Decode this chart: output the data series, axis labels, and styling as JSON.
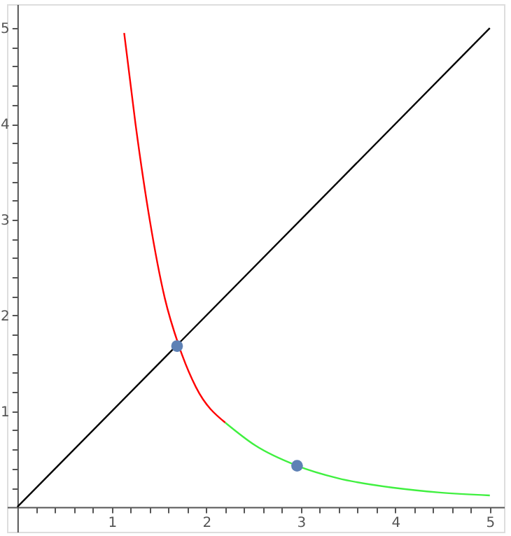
{
  "chart_data": {
    "type": "line",
    "xlim": [
      -0.11,
      5.15
    ],
    "ylim": [
      -0.26,
      5.25
    ],
    "xticks": [
      {
        "value": 0.2,
        "label": null
      },
      {
        "value": 0.4,
        "label": null
      },
      {
        "value": 0.6,
        "label": null
      },
      {
        "value": 0.8,
        "label": null
      },
      1,
      {
        "value": 1.2,
        "label": null
      },
      {
        "value": 1.4,
        "label": null
      },
      {
        "value": 1.6,
        "label": null
      },
      {
        "value": 1.8,
        "label": null
      },
      2,
      {
        "value": 2.2,
        "label": null
      },
      {
        "value": 2.4,
        "label": null
      },
      {
        "value": 2.6,
        "label": null
      },
      {
        "value": 2.8,
        "label": null
      },
      3,
      {
        "value": 3.2,
        "label": null
      },
      {
        "value": 3.4,
        "label": null
      },
      {
        "value": 3.6,
        "label": null
      },
      {
        "value": 3.8,
        "label": null
      },
      4,
      {
        "value": 4.2,
        "label": null
      },
      {
        "value": 4.4,
        "label": null
      },
      {
        "value": 4.6,
        "label": null
      },
      {
        "value": 4.8,
        "label": null
      },
      5
    ],
    "yticks": [
      {
        "value": 0.2,
        "label": null
      },
      {
        "value": 0.4,
        "label": null
      },
      {
        "value": 0.6,
        "label": null
      },
      {
        "value": 0.8,
        "label": null
      },
      1,
      {
        "value": 1.2,
        "label": null
      },
      {
        "value": 1.4,
        "label": null
      },
      {
        "value": 1.6,
        "label": null
      },
      {
        "value": 1.8,
        "label": null
      },
      2,
      {
        "value": 2.2,
        "label": null
      },
      {
        "value": 2.4,
        "label": null
      },
      {
        "value": 2.6,
        "label": null
      },
      {
        "value": 2.8,
        "label": null
      },
      3,
      {
        "value": 3.2,
        "label": null
      },
      {
        "value": 3.4,
        "label": null
      },
      {
        "value": 3.6,
        "label": null
      },
      {
        "value": 3.8,
        "label": null
      },
      4,
      {
        "value": 4.2,
        "label": null
      },
      {
        "value": 4.4,
        "label": null
      },
      {
        "value": 4.6,
        "label": null
      },
      {
        "value": 4.8,
        "label": null
      },
      5
    ],
    "grid": false,
    "line_style": "solid",
    "series": [
      {
        "type": "line",
        "color": "#000000",
        "x": [
          0,
          5
        ],
        "values": [
          0,
          5
        ]
      },
      {
        "type": "line",
        "color": "#ff0000",
        "x": [
          1.13,
          1.25,
          1.4,
          1.56,
          1.71,
          1.89,
          2.2
        ],
        "values": [
          4.95,
          4.0,
          3.0,
          2.18,
          1.68,
          1.25,
          0.88
        ]
      },
      {
        "type": "line",
        "color": "#40f040",
        "x": [
          2.2,
          2.52,
          2.96,
          3.39,
          3.98,
          4.47,
          5.0
        ],
        "values": [
          0.88,
          0.64,
          0.43,
          0.3,
          0.2,
          0.15,
          0.12
        ]
      },
      {
        "type": "scatter",
        "marker": "circle",
        "color": "#5e81b5",
        "x": [
          1.69,
          2.96
        ],
        "values": [
          1.68,
          0.43
        ]
      }
    ]
  }
}
